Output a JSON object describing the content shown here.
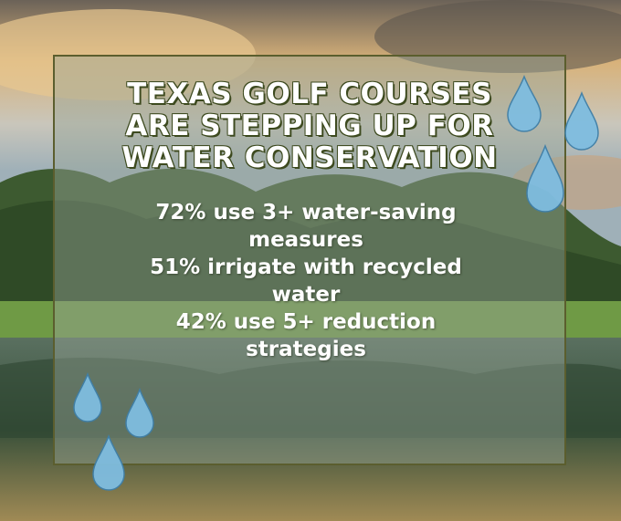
{
  "title_lines": [
    "TEXAS GOLF COURSES",
    "ARE STEPPING UP FOR",
    "WATER CONSERVATION"
  ],
  "stats": [
    "72% use 3+ water-saving measures",
    "51% irrigate with recycled water",
    "42% use 5+ reduction strategies"
  ]
}
